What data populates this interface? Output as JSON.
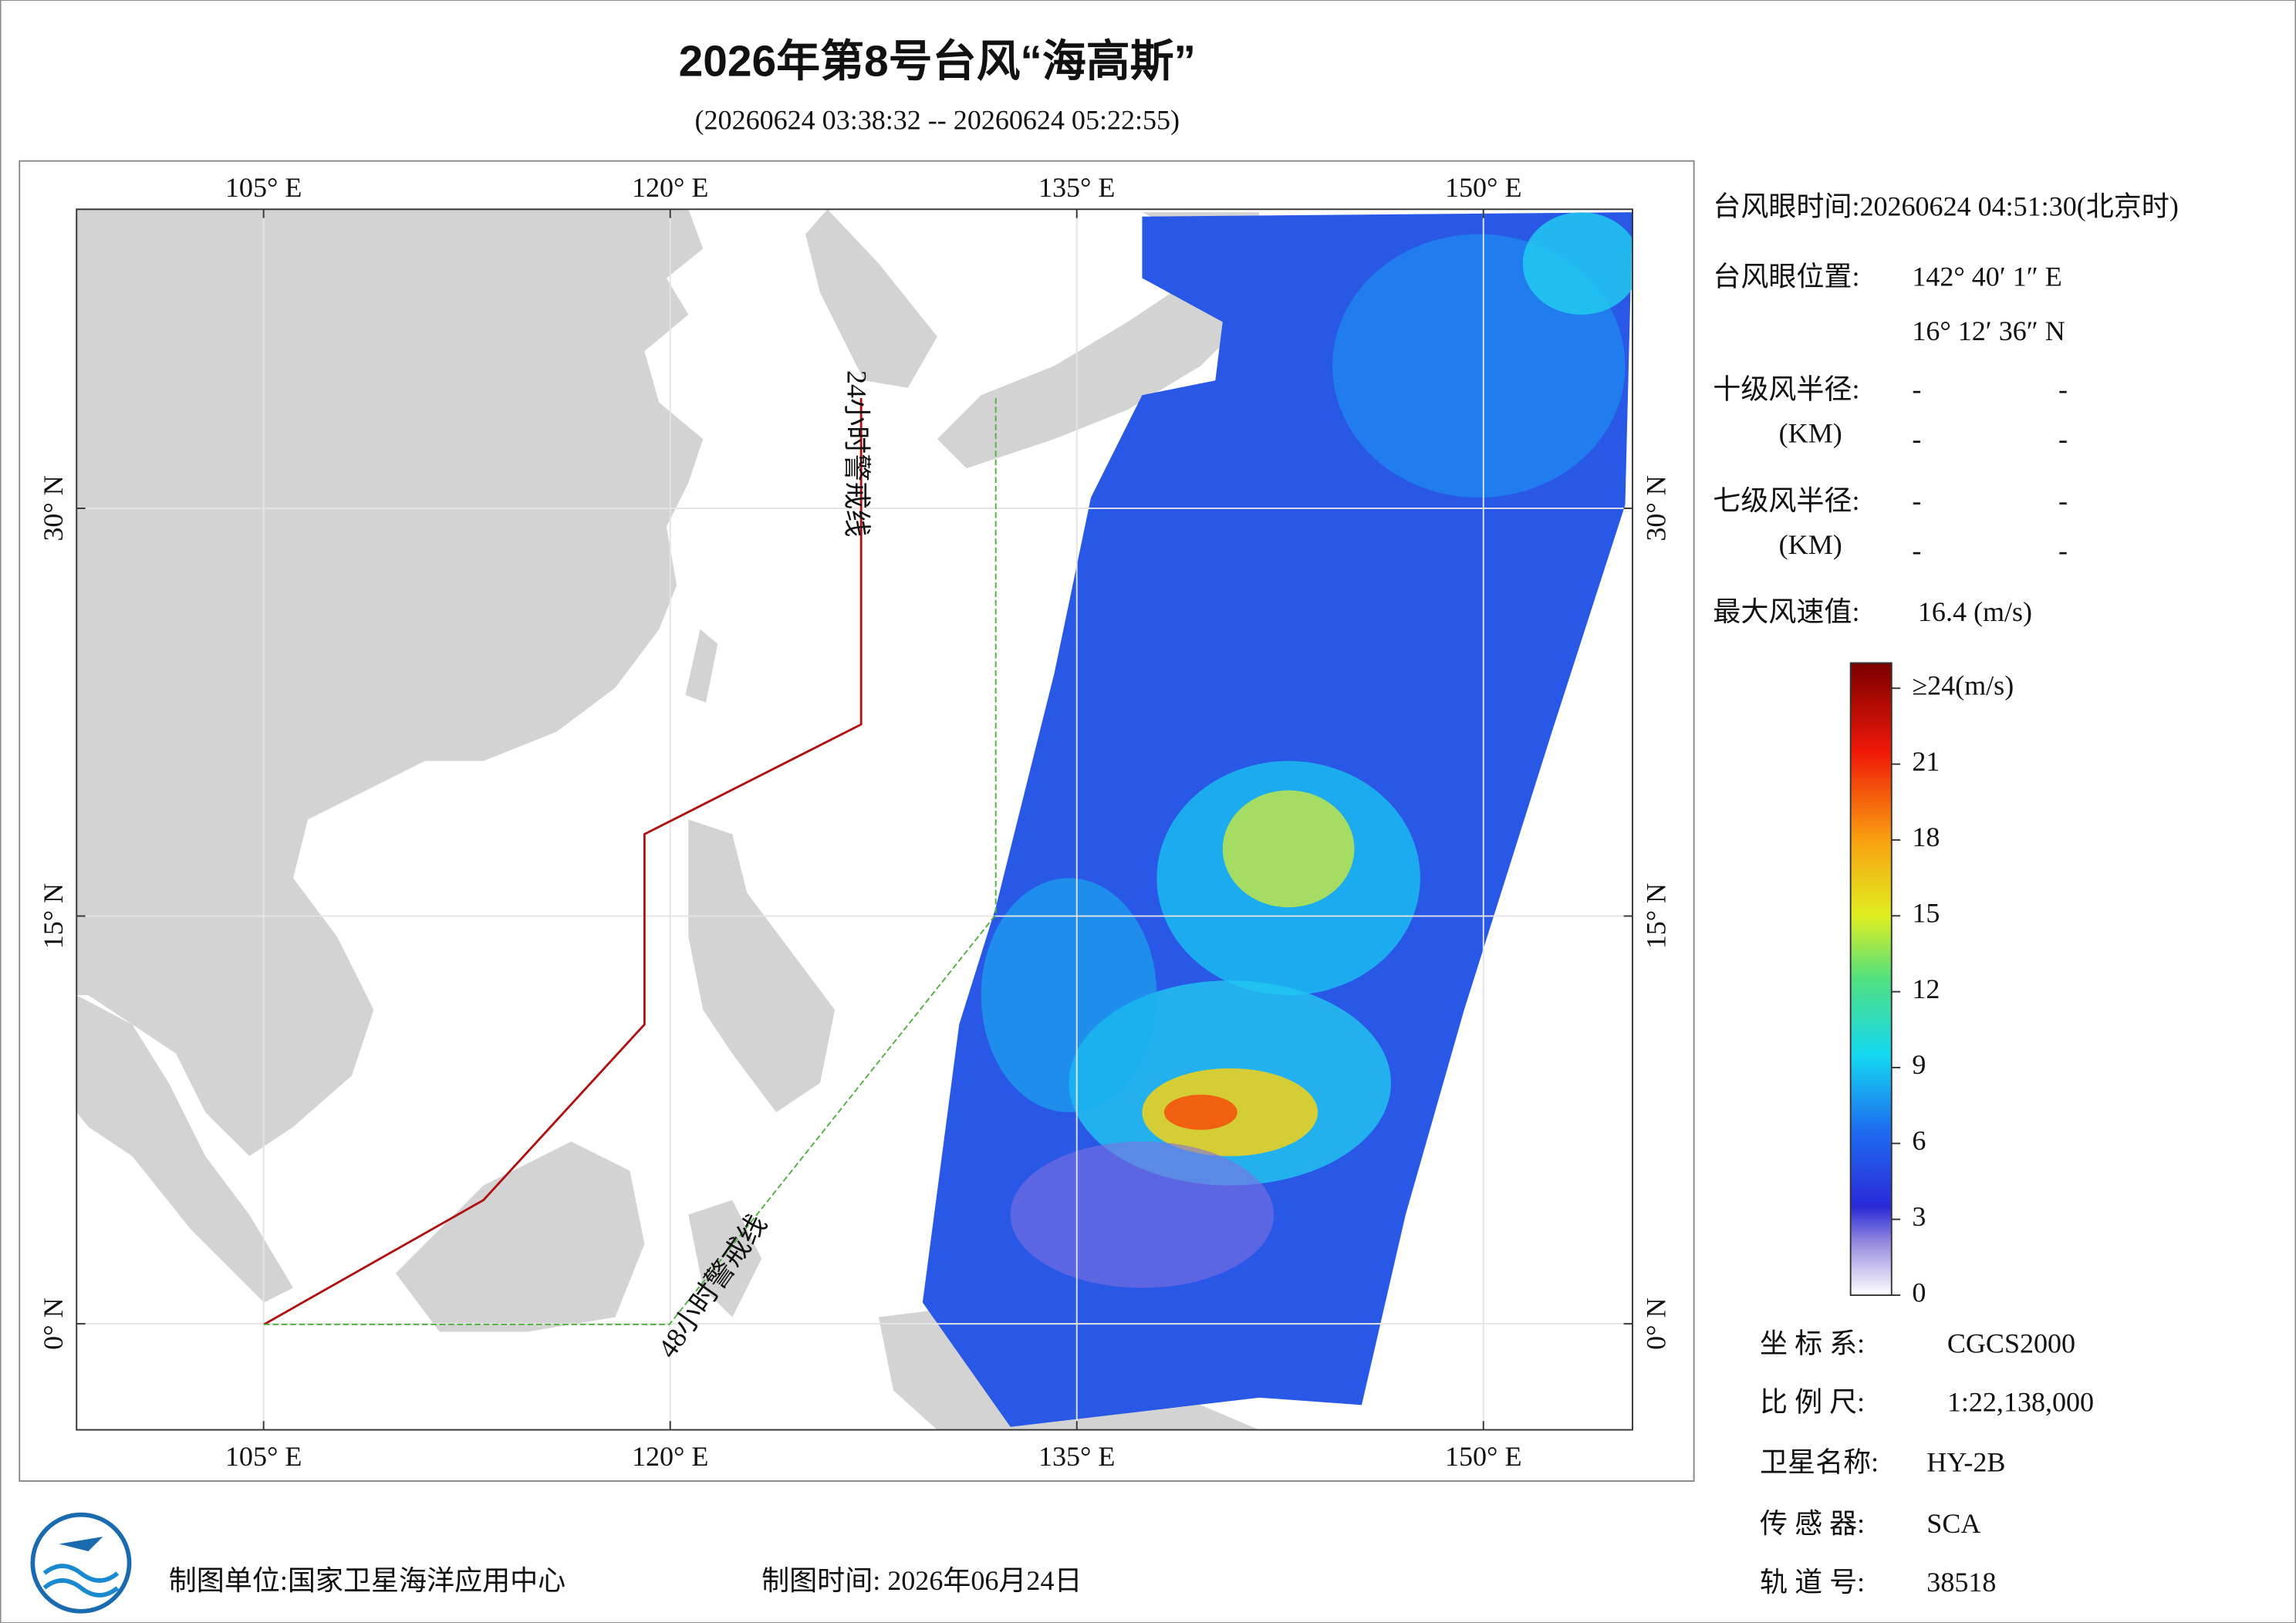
{
  "header": {
    "title": "2026年第8号台风“海高斯”",
    "subtitle": "(20260624 03:38:32 -- 20260624 05:22:55)"
  },
  "map": {
    "xlim": [
      98.1,
      155.5
    ],
    "ylim": [
      -3.9,
      41
    ],
    "grid": true,
    "lon_ticks": [
      {
        "value": 105,
        "label": "105° E"
      },
      {
        "value": 120,
        "label": "120° E"
      },
      {
        "value": 135,
        "label": "135° E"
      },
      {
        "value": 150,
        "label": "150° E"
      }
    ],
    "lat_ticks": [
      {
        "value": 0,
        "label": "0° N"
      },
      {
        "value": 15,
        "label": "15° N"
      },
      {
        "value": 30,
        "label": "30° N"
      }
    ],
    "warning_24h": "24小时警戒线",
    "warning_48h": "48小时警戒线"
  },
  "info": {
    "eye_time": "台风眼时间:20260624 04:51:30(北京时)",
    "eye_pos_label": "台风眼位置:",
    "eye_lon": "142° 40′ 1″ E",
    "eye_lat": "16° 12′ 36″ N",
    "r10_label": "十级风半径:",
    "r7_label": "七级风半径:",
    "km": "(KM)",
    "dash": "-",
    "max_label": "最大风速值:",
    "max_value": "16.4  (m/s)"
  },
  "colorbar": {
    "lim": [
      0,
      25
    ],
    "ticks": [
      0,
      3,
      6,
      9,
      12,
      15,
      18,
      21,
      {
        "value": 24,
        "label": "≥24(m/s)"
      }
    ]
  },
  "meta": {
    "crs_label": "坐 标 系:",
    "crs": "CGCS2000",
    "scale_label": "比 例 尺:",
    "scale": "1:22,138,000",
    "sat_label": "卫星名称:",
    "sat": "HY-2B",
    "sensor_label": "传 感 器:",
    "sensor": "SCA",
    "orbit_label": "轨 道 号:",
    "orbit": "38518"
  },
  "footer": {
    "unit": "制图单位:国家卫星海洋应用中心",
    "date": "制图时间:  2026年06月24日"
  }
}
